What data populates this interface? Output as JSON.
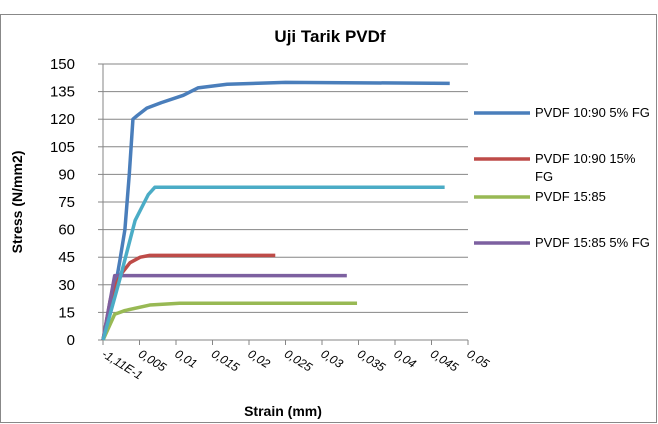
{
  "chart_data": {
    "type": "line",
    "title": "Uji Tarik PVDf",
    "x_label": "Strain (mm)",
    "y_label": "Stress (N/mm2)",
    "xlim": [
      -1.11e-16,
      0.05
    ],
    "ylim": [
      0,
      150
    ],
    "xticks": [
      {
        "value": -1.11e-16,
        "label": "-1,11E-1"
      },
      {
        "value": 0.005,
        "label": "0,005"
      },
      {
        "value": 0.01,
        "label": "0,01"
      },
      {
        "value": 0.015,
        "label": "0,015"
      },
      {
        "value": 0.02,
        "label": "0,02"
      },
      {
        "value": 0.025,
        "label": "0,025"
      },
      {
        "value": 0.03,
        "label": "0,03"
      },
      {
        "value": 0.035,
        "label": "0,035"
      },
      {
        "value": 0.04,
        "label": "0,04"
      },
      {
        "value": 0.045,
        "label": "0,045"
      },
      {
        "value": 0.05,
        "label": "0,05"
      }
    ],
    "yticks": [
      0,
      15,
      30,
      45,
      60,
      75,
      90,
      105,
      120,
      135,
      150
    ],
    "grid": true,
    "legend": "right",
    "series": [
      {
        "name": "PVDF 10:90 5% FG",
        "color": "#4a7ebb",
        "x": [
          0,
          0.0016,
          0.0023,
          0.003,
          0.0036,
          0.0041,
          0.0047,
          0.006,
          0.008,
          0.011,
          0.013,
          0.017,
          0.025,
          0.0475
        ],
        "values": [
          0,
          27,
          43,
          60,
          90,
          120,
          122,
          126,
          129,
          133,
          137,
          139,
          140,
          139.5
        ]
      },
      {
        "name": "PVDF 10:90 15% FG",
        "color": "#be4b48",
        "x": [
          0,
          0.001,
          0.0023,
          0.0037,
          0.0051,
          0.0064,
          0.0236
        ],
        "values": [
          0,
          22,
          35,
          42,
          45,
          46,
          46
        ]
      },
      {
        "name": "PVDF 15:85",
        "color": "#98b954",
        "x": [
          0,
          0.0016,
          0.003,
          0.0064,
          0.0105,
          0.0348
        ],
        "values": [
          0,
          14,
          16,
          19,
          20,
          20
        ]
      },
      {
        "name": "PVDF 15:85 5% FG",
        "color": "#7d60a0",
        "x": [
          0,
          0.001,
          0.0016,
          0.0023,
          0.0064,
          0.0334
        ],
        "values": [
          0,
          22,
          35,
          35,
          35,
          35
        ]
      },
      {
        "color": "#4bacc6",
        "x": [
          0,
          0.0023,
          0.0044,
          0.0062,
          0.0071,
          0.0082,
          0.0468
        ],
        "values": [
          0,
          33,
          65,
          79,
          83,
          83,
          83
        ]
      }
    ]
  }
}
